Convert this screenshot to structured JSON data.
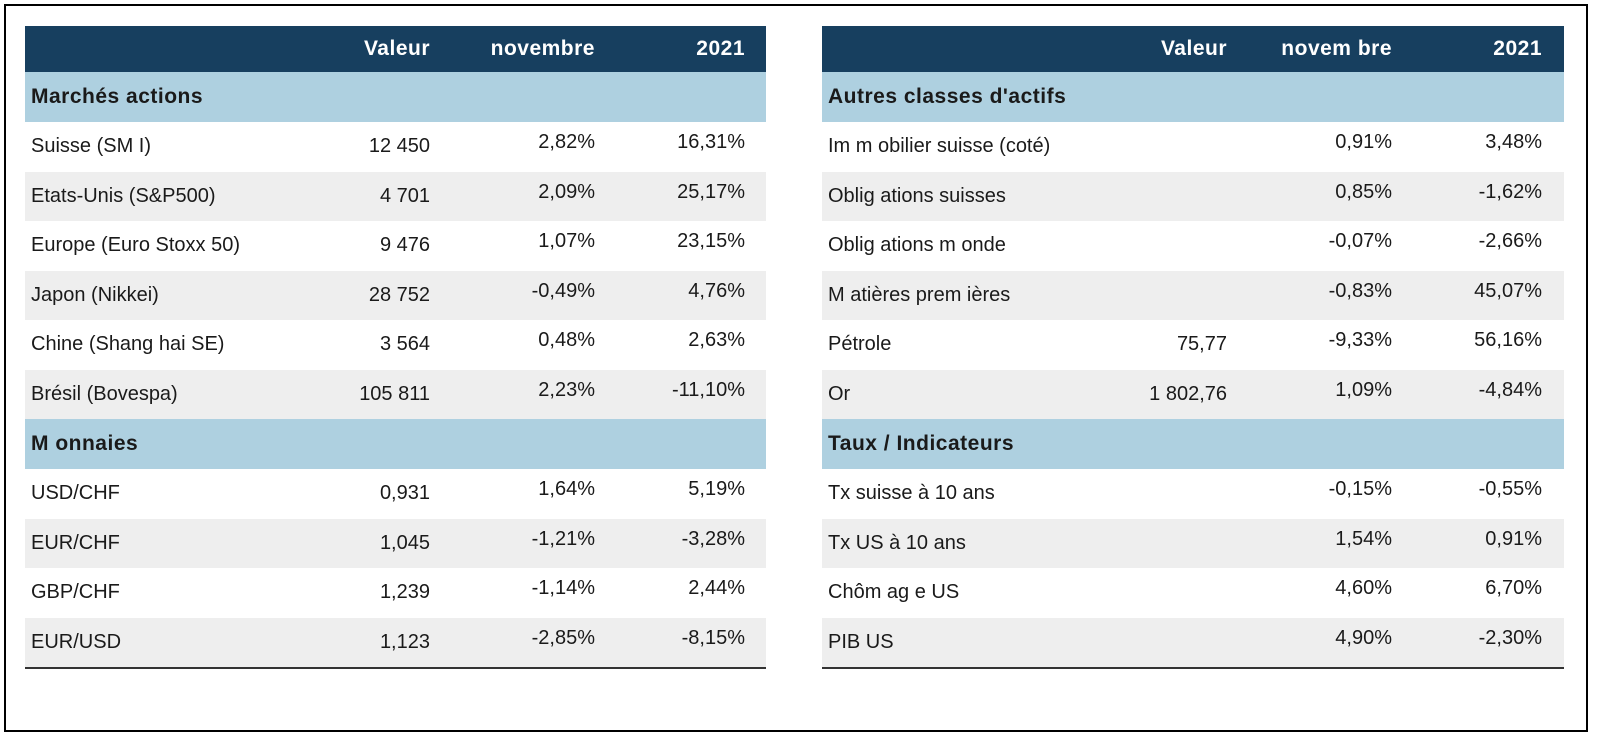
{
  "left": {
    "headers": [
      "",
      "Valeur",
      "novembre",
      "2021"
    ],
    "sections": [
      {
        "title": "Marchés actions",
        "rows": [
          [
            "Suisse (SM I)",
            "12 450",
            "2,82%",
            "16,31%"
          ],
          [
            "Etats-Unis (S&P500)",
            "4 701",
            "2,09%",
            "25,17%"
          ],
          [
            "Europe (Euro Stoxx 50)",
            "9 476",
            "1,07%",
            "23,15%"
          ],
          [
            "Japon (Nikkei)",
            "28 752",
            "-0,49%",
            "4,76%"
          ],
          [
            "Chine (Shang hai SE)",
            "3 564",
            "0,48%",
            "2,63%"
          ],
          [
            "Brésil (Bovespa)",
            "105 811",
            "2,23%",
            "-11,10%"
          ]
        ]
      },
      {
        "title": "M onnaies",
        "rows": [
          [
            "USD/CHF",
            "0,931",
            "1,64%",
            "5,19%"
          ],
          [
            "EUR/CHF",
            "1,045",
            "-1,21%",
            "-3,28%"
          ],
          [
            "GBP/CHF",
            "1,239",
            "-1,14%",
            "2,44%"
          ],
          [
            "EUR/USD",
            "1,123",
            "-2,85%",
            "-8,15%"
          ]
        ]
      }
    ]
  },
  "right": {
    "headers": [
      "",
      "Valeur",
      "novem bre",
      "2021"
    ],
    "sections": [
      {
        "title": "Autres classes d'actifs",
        "rows": [
          [
            "Im m obilier suisse (coté)",
            "",
            "0,91%",
            "3,48%"
          ],
          [
            "Oblig ations suisses",
            "",
            "0,85%",
            "-1,62%"
          ],
          [
            "Oblig ations m onde",
            "",
            "-0,07%",
            "-2,66%"
          ],
          [
            "M atières prem ières",
            "",
            "-0,83%",
            "45,07%"
          ],
          [
            "Pétrole",
            "75,77",
            "-9,33%",
            "56,16%"
          ],
          [
            "Or",
            "1 802,76",
            "1,09%",
            "-4,84%"
          ]
        ]
      },
      {
        "title": "Taux / Indicateurs",
        "rows": [
          [
            "Tx suisse à 10 ans",
            "",
            "-0,15%",
            "-0,55%"
          ],
          [
            "Tx US à 10 ans",
            "",
            "1,54%",
            "0,91%"
          ],
          [
            "Chôm ag e US",
            "",
            "4,60%",
            "6,70%"
          ],
          [
            "PIB US",
            "",
            "4,90%",
            "-2,30%"
          ]
        ]
      }
    ]
  }
}
